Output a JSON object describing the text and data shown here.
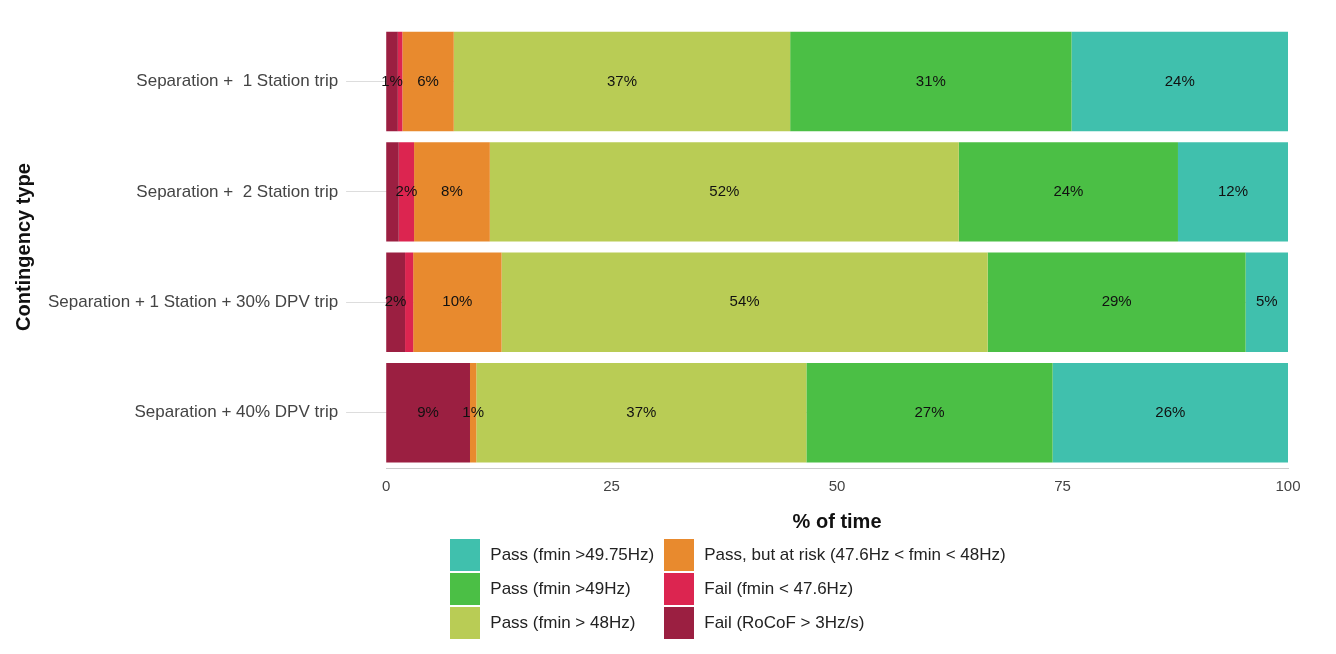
{
  "chart_data": {
    "type": "bar",
    "orientation": "horizontal",
    "stacked": true,
    "xlabel": "% of time",
    "ylabel": "Contingency type",
    "categories": [
      "Separation +  1 Station trip",
      "Separation +  2 Station trip",
      "Separation + 1 Station + 30% DPV trip",
      "Separation + 40% DPV trip"
    ],
    "series": [
      {
        "name": "Fail (RoCoF > 3Hz/s)",
        "color": "#9b1f41",
        "values": [
          1.3,
          1.4,
          2.1,
          9.3
        ],
        "value_labels": [
          "1%",
          null,
          "2%",
          "9%"
        ]
      },
      {
        "name": "Fail (fmin < 47.6Hz)",
        "color": "#dc2550",
        "values": [
          0.5,
          1.7,
          0.9,
          0
        ],
        "value_labels": [
          null,
          "2%",
          null,
          null
        ]
      },
      {
        "name": "Pass, but at risk (47.6Hz < fmin < 48Hz)",
        "color": "#e88a2e",
        "values": [
          5.7,
          8.4,
          9.8,
          0.7
        ],
        "value_labels": [
          "6%",
          "8%",
          "10%",
          "1%"
        ]
      },
      {
        "name": "Pass (fmin > 48Hz)",
        "color": "#b9cc55",
        "values": [
          37.3,
          52,
          53.9,
          36.6
        ],
        "value_labels": [
          "37%",
          "52%",
          "54%",
          "37%"
        ]
      },
      {
        "name": "Pass (fmin >49Hz)",
        "color": "#4bbf45",
        "values": [
          31.2,
          24.3,
          28.6,
          27.3
        ],
        "value_labels": [
          "31%",
          "24%",
          "29%",
          "27%"
        ]
      },
      {
        "name": "Pass (fmin >49.75Hz)",
        "color": "#40c0ad",
        "values": [
          24,
          12.2,
          4.7,
          26.1
        ],
        "value_labels": [
          "24%",
          "12%",
          "5%",
          "26%"
        ]
      }
    ],
    "xlim": [
      0,
      100
    ],
    "xticks": [
      0,
      25,
      50,
      75,
      100
    ],
    "grid": "y",
    "legend": "bottom"
  }
}
